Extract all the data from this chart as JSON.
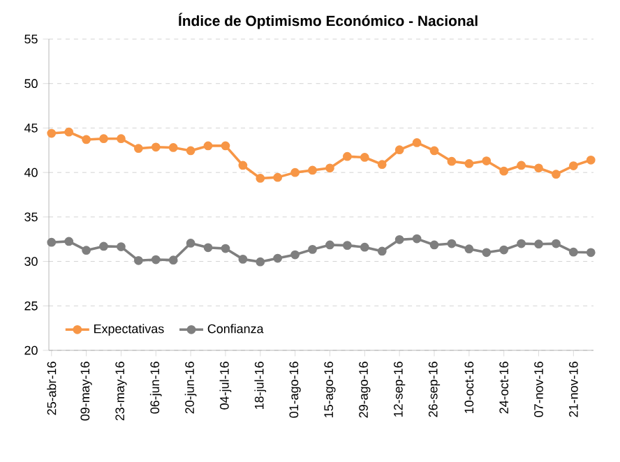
{
  "chart_data": {
    "type": "line",
    "title": "Índice de Optimismo Económico - Nacional",
    "categories": [
      "25-abr-16",
      null,
      "09-may-16",
      null,
      "23-may-16",
      null,
      "06-jun-16",
      null,
      "20-jun-16",
      null,
      "04-jul-16",
      null,
      "18-jul-16",
      null,
      "01-ago-16",
      null,
      "15-ago-16",
      null,
      "29-ago-16",
      null,
      "12-sep-16",
      null,
      "26-sep-16",
      null,
      "10-oct-16",
      null,
      "24-oct-16",
      null,
      "07-nov-16",
      null,
      "21-nov-16",
      null
    ],
    "series": [
      {
        "name": "Expectativas",
        "color": "#f79646",
        "values": [
          44.4,
          44.55,
          43.7,
          43.8,
          43.8,
          42.7,
          42.85,
          42.8,
          42.45,
          43.0,
          43.0,
          40.8,
          39.35,
          39.45,
          40.0,
          40.25,
          40.5,
          41.8,
          41.7,
          40.9,
          42.55,
          43.35,
          42.45,
          41.25,
          41.0,
          41.3,
          40.15,
          40.8,
          40.5,
          39.8,
          40.75,
          41.4
        ]
      },
      {
        "name": "Confianza",
        "color": "#7f7f7f",
        "values": [
          32.15,
          32.25,
          31.25,
          31.7,
          31.65,
          30.1,
          30.2,
          30.15,
          32.05,
          31.55,
          31.45,
          30.25,
          29.95,
          30.35,
          30.75,
          31.35,
          31.85,
          31.8,
          31.6,
          31.15,
          32.45,
          32.55,
          31.85,
          32.0,
          31.4,
          31.0,
          31.3,
          32.0,
          31.95,
          32.0,
          31.05,
          31.0
        ]
      }
    ],
    "ylim": [
      20,
      55
    ],
    "yticks": [
      20,
      25,
      30,
      35,
      40,
      45,
      50,
      55
    ],
    "grid": "y",
    "legend": "bottom left",
    "marker": "circle",
    "line_style": "solid"
  }
}
